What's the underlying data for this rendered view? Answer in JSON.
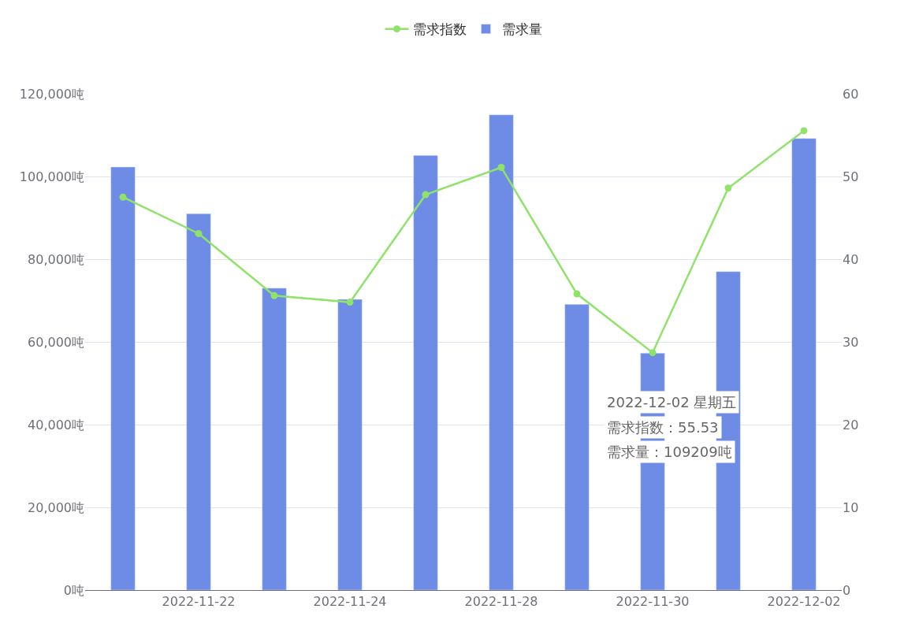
{
  "chart_data": {
    "type": "bar",
    "categories": [
      null,
      "2022-11-22",
      null,
      "2022-11-24",
      null,
      "2022-11-28",
      null,
      "2022-11-30",
      null,
      "2022-12-02"
    ],
    "series": [
      {
        "name": "需求指数",
        "type": "line",
        "axis": "y2",
        "color": "#8fe36a",
        "marker": "circle",
        "line_style": "solid",
        "values": [
          47.5,
          43.1,
          35.6,
          34.8,
          47.8,
          51.1,
          35.8,
          28.7,
          48.6,
          55.53
        ]
      },
      {
        "name": "需求量",
        "color": "#6e8ce6",
        "values": [
          102300,
          91000,
          73000,
          70300,
          105100,
          114900,
          69100,
          57300,
          77000,
          109209
        ]
      }
    ],
    "ylim": [
      0,
      120000
    ],
    "yticks": [
      {
        "value": 0,
        "label": "0吨"
      },
      {
        "value": 20000,
        "label": "20,000吨"
      },
      {
        "value": 40000,
        "label": "40,000吨"
      },
      {
        "value": 60000,
        "label": "60,000吨"
      },
      {
        "value": 80000,
        "label": "80,000吨"
      },
      {
        "value": 100000,
        "label": "100,000吨"
      },
      {
        "value": 120000,
        "label": "120,000吨"
      }
    ],
    "y2lim": [
      0,
      60
    ],
    "y2ticks": [
      0,
      10,
      20,
      30,
      40,
      50,
      60
    ],
    "grid": "y",
    "legend": "top",
    "annotations": [
      "2022-12-02 星期五",
      "需求指数：55.53",
      "需求量：109209吨"
    ]
  }
}
